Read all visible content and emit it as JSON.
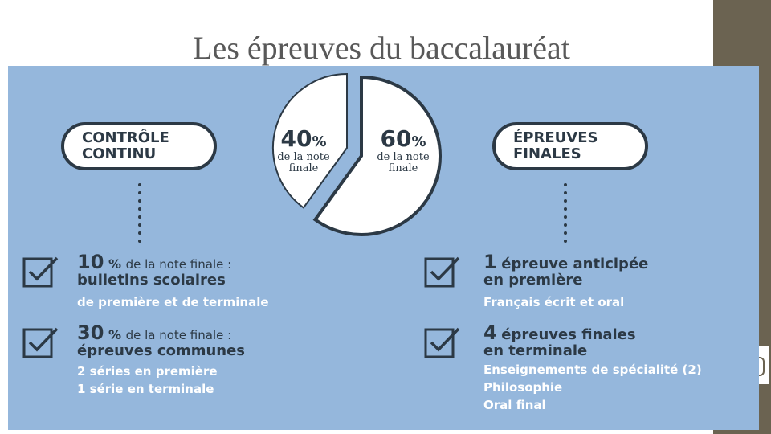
{
  "slide": {
    "title": "Les épreuves du baccalauréat"
  },
  "left_pill": {
    "line1": "CONTRÔLE",
    "line2": "CONTINU"
  },
  "right_pill": {
    "line1": "ÉPREUVES",
    "line2": "FINALES"
  },
  "chart_data": {
    "type": "pie",
    "values": [
      40,
      60
    ],
    "labels": [
      "40 % de la note finale",
      "60 % de la note finale"
    ],
    "colors": [
      "#ffffff",
      "#ffffff"
    ]
  },
  "pie_labels": {
    "left": {
      "value": "40",
      "unit": "%",
      "sub1": "de la note",
      "sub2": "finale"
    },
    "right": {
      "value": "60",
      "unit": "%",
      "sub1": "de la note",
      "sub2": "finale"
    }
  },
  "left_items": [
    {
      "num": "10",
      "unit": "%",
      "suffix": "de la note finale :",
      "title": "bulletins scolaires",
      "lines": [
        "de première et de terminale"
      ]
    },
    {
      "num": "30",
      "unit": "%",
      "suffix": "de la note finale :",
      "title": "épreuves communes",
      "lines": [
        "2 séries en première",
        "1 série en terminale"
      ]
    }
  ],
  "right_items": [
    {
      "num": "1",
      "suffix": "épreuve anticipée",
      "title": "en première",
      "lines": [
        "Français écrit et oral"
      ]
    },
    {
      "num": "4",
      "suffix": "épreuves finales",
      "title": "en terminale",
      "lines": [
        "Enseignements de spécialité (2)",
        "Philosophie",
        "Oral final"
      ]
    }
  ],
  "colors": {
    "panel": "#95b7dc",
    "ink": "#2c3945",
    "sidebar": "#6b6351"
  }
}
